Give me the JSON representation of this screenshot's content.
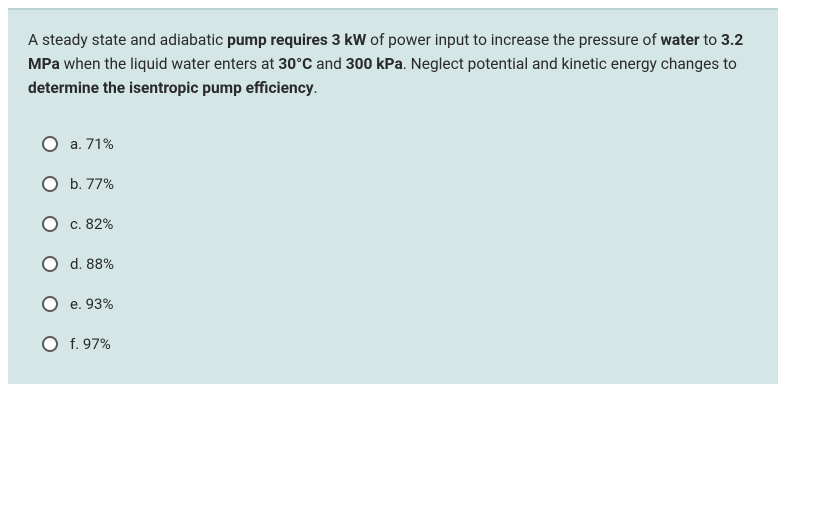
{
  "question": {
    "segments": [
      {
        "text": "A steady state and adiabatic ",
        "bold": false
      },
      {
        "text": "pump requires 3 kW",
        "bold": true
      },
      {
        "text": " of power input to increase the pressure of ",
        "bold": false
      },
      {
        "text": "water",
        "bold": true
      },
      {
        "text": " to ",
        "bold": false
      },
      {
        "text": "3.2 MPa",
        "bold": true
      },
      {
        "text": " when the liquid water enters at ",
        "bold": false
      },
      {
        "text": "30°C",
        "bold": true
      },
      {
        "text": " and ",
        "bold": false
      },
      {
        "text": "300 kPa",
        "bold": true
      },
      {
        "text": ". Neglect potential and kinetic energy changes to ",
        "bold": false
      },
      {
        "text": "determine the isentropic pump efficiency",
        "bold": true
      },
      {
        "text": ".",
        "bold": false
      }
    ]
  },
  "options": [
    {
      "letter": "a",
      "value": "71%"
    },
    {
      "letter": "b",
      "value": "77%"
    },
    {
      "letter": "c",
      "value": "82%"
    },
    {
      "letter": "d",
      "value": "88%"
    },
    {
      "letter": "e",
      "value": "93%"
    },
    {
      "letter": "f",
      "value": "97%"
    }
  ],
  "colors": {
    "card_background": "#d4e7e6",
    "card_border_top": "#b8d4d2",
    "text_color": "#2a2a2a",
    "radio_border": "#5a5a5a"
  }
}
